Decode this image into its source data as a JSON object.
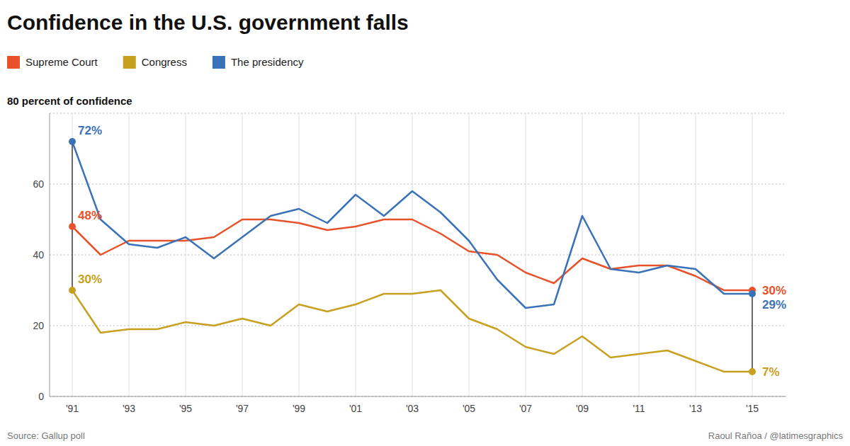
{
  "chart_data": {
    "type": "line",
    "title": "Confidence in the U.S. government falls",
    "ylabel": "80 percent of confidence",
    "source": "Source: Gallup poll",
    "credit": "Raoul Rañoa / @latimesgraphics",
    "x": [
      1991,
      1992,
      1993,
      1994,
      1995,
      1996,
      1997,
      1998,
      1999,
      2000,
      2001,
      2002,
      2003,
      2004,
      2005,
      2006,
      2007,
      2008,
      2009,
      2010,
      2011,
      2012,
      2013,
      2014,
      2015
    ],
    "series": [
      {
        "name": "Supreme Court",
        "color": "#E8522A",
        "values": [
          48,
          40,
          44,
          44,
          44,
          45,
          50,
          50,
          49,
          47,
          48,
          50,
          50,
          46,
          41,
          40,
          35,
          32,
          39,
          36,
          37,
          37,
          34,
          30,
          30
        ],
        "value_labels": [
          "48%",
          null,
          null,
          null,
          null,
          null,
          null,
          null,
          null,
          null,
          null,
          null,
          null,
          null,
          null,
          null,
          null,
          null,
          null,
          null,
          null,
          null,
          null,
          null,
          "30%"
        ]
      },
      {
        "name": "Congress",
        "color": "#C8A020",
        "values": [
          30,
          18,
          19,
          19,
          21,
          20,
          22,
          20,
          26,
          24,
          26,
          29,
          29,
          30,
          22,
          19,
          14,
          12,
          17,
          11,
          12,
          13,
          10,
          7,
          7
        ],
        "value_labels": [
          "30%",
          null,
          null,
          null,
          null,
          null,
          null,
          null,
          null,
          null,
          null,
          null,
          null,
          null,
          null,
          null,
          null,
          null,
          null,
          null,
          null,
          null,
          null,
          null,
          "7%"
        ]
      },
      {
        "name": "The presidency",
        "color": "#3A72B8",
        "values": [
          72,
          50,
          43,
          42,
          45,
          39,
          45,
          51,
          53,
          49,
          57,
          51,
          58,
          52,
          44,
          33,
          25,
          26,
          51,
          36,
          35,
          37,
          36,
          29,
          29
        ],
        "value_labels": [
          "72%",
          null,
          null,
          null,
          null,
          null,
          null,
          null,
          null,
          null,
          null,
          null,
          null,
          null,
          null,
          null,
          null,
          null,
          null,
          null,
          null,
          null,
          null,
          null,
          "29%"
        ]
      }
    ],
    "xlim": [
      1990.2,
      2016.2
    ],
    "xticks": [
      {
        "value": 1991,
        "label": "'91"
      },
      {
        "value": 1993,
        "label": "'93"
      },
      {
        "value": 1995,
        "label": "'95"
      },
      {
        "value": 1997,
        "label": "'97"
      },
      {
        "value": 1999,
        "label": "'99"
      },
      {
        "value": 2001,
        "label": "'01"
      },
      {
        "value": 2003,
        "label": "'03"
      },
      {
        "value": 2005,
        "label": "'05"
      },
      {
        "value": 2007,
        "label": "'07"
      },
      {
        "value": 2009,
        "label": "'09"
      },
      {
        "value": 2011,
        "label": "'11"
      },
      {
        "value": 2013,
        "label": "'13"
      },
      {
        "value": 2015,
        "label": "'15"
      }
    ],
    "ylim": [
      0,
      80
    ],
    "yticks": [
      0,
      20,
      40,
      60
    ],
    "grid": true,
    "legend": "top"
  }
}
